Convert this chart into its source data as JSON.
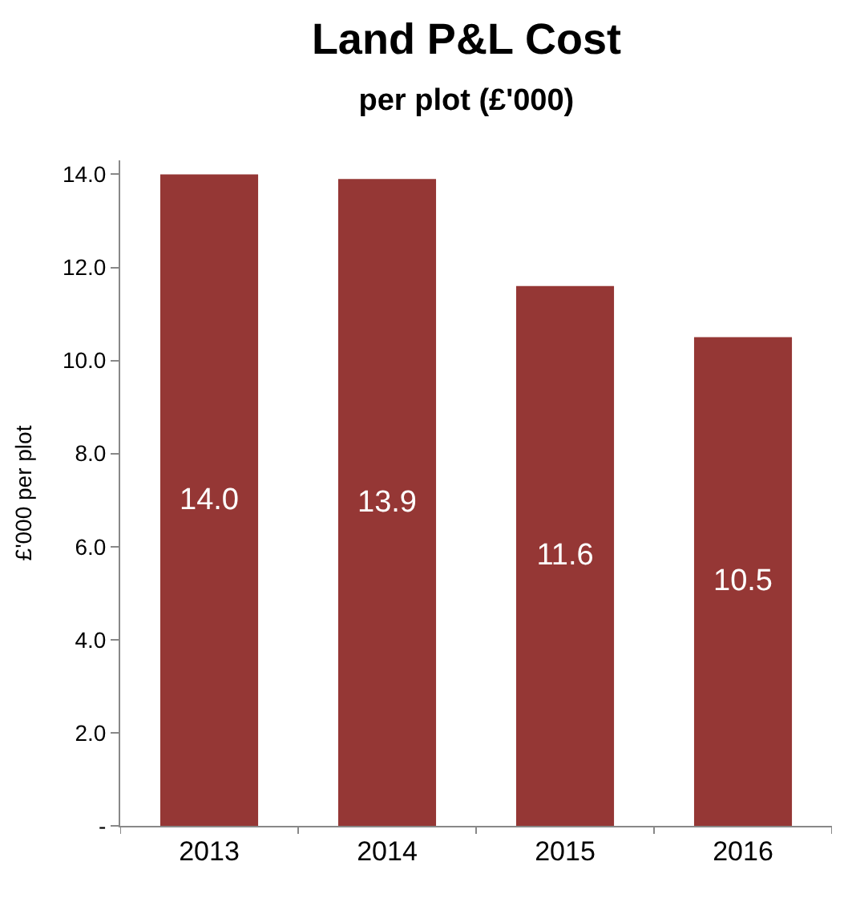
{
  "chart_data": {
    "type": "bar",
    "title": "Land P&L Cost",
    "subtitle": "per plot (£'000)",
    "ylabel": "£'000 per plot",
    "categories": [
      "2013",
      "2014",
      "2015",
      "2016"
    ],
    "values": [
      14.0,
      13.9,
      11.6,
      10.5
    ],
    "color": "#953735",
    "value_labels": [
      "14.0",
      "13.9",
      "11.6",
      "10.5"
    ],
    "ylim": [
      0,
      14.3
    ],
    "yticks": [
      {
        "value": 0,
        "label": "-"
      },
      {
        "value": 2,
        "label": "2.0"
      },
      {
        "value": 4,
        "label": "4.0"
      },
      {
        "value": 6,
        "label": "6.0"
      },
      {
        "value": 8,
        "label": "8.0"
      },
      {
        "value": 10,
        "label": "10.0"
      },
      {
        "value": 12,
        "label": "12.0"
      },
      {
        "value": 14,
        "label": "14.0"
      }
    ]
  }
}
